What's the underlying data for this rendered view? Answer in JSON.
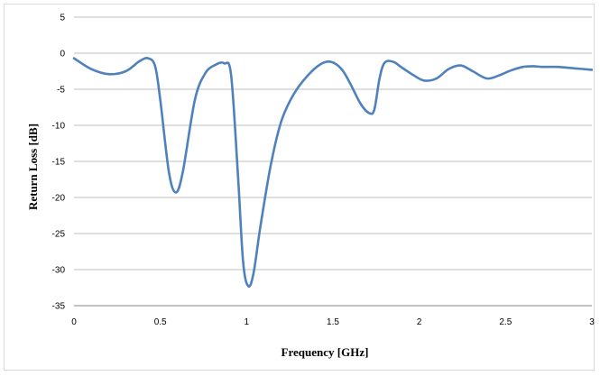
{
  "chart_data": {
    "type": "line",
    "title": "",
    "xlabel": "Frequency [GHz]",
    "ylabel": "Return Loss [dB]",
    "xlim": [
      0,
      3
    ],
    "ylim": [
      -35,
      5
    ],
    "xticks": [
      0,
      0.5,
      1,
      1.5,
      2,
      2.5,
      3
    ],
    "yticks": [
      5,
      0,
      -5,
      -10,
      -15,
      -20,
      -25,
      -30,
      -35
    ],
    "xtick_labels": [
      "0",
      "0.5",
      "1",
      "1.5",
      "2",
      "2.5",
      "3"
    ],
    "ytick_labels": [
      "5",
      "0",
      "-5",
      "-10",
      "-15",
      "-20",
      "-25",
      "-30",
      "-35"
    ],
    "grid": "horizontal",
    "legend": "none",
    "line_color": "#4f81bd",
    "series": [
      {
        "x": [
          0,
          0.1,
          0.2,
          0.3,
          0.38,
          0.43,
          0.47,
          0.5,
          0.55,
          0.59,
          0.63,
          0.7,
          0.76,
          0.82,
          0.87,
          0.91,
          0.95,
          0.98,
          1.01,
          1.04,
          1.08,
          1.14,
          1.2,
          1.27,
          1.35,
          1.43,
          1.49,
          1.55,
          1.6,
          1.66,
          1.71,
          1.74,
          1.77,
          1.8,
          1.85,
          1.9,
          1.97,
          2.03,
          2.1,
          2.17,
          2.24,
          2.31,
          2.39,
          2.46,
          2.53,
          2.6,
          2.66,
          2.71,
          2.8,
          2.9,
          3.0
        ],
        "y": [
          -0.7,
          -2.2,
          -2.9,
          -2.5,
          -1.1,
          -0.7,
          -1.8,
          -6.5,
          -16.5,
          -19.3,
          -16.5,
          -6.5,
          -2.8,
          -1.6,
          -1.4,
          -3.0,
          -17.0,
          -29.0,
          -32.3,
          -30.5,
          -24.0,
          -15.5,
          -9.5,
          -5.8,
          -3.2,
          -1.5,
          -1.2,
          -2.2,
          -4.2,
          -7.0,
          -8.3,
          -7.8,
          -3.5,
          -1.3,
          -1.2,
          -2.0,
          -3.1,
          -3.8,
          -3.5,
          -2.2,
          -1.7,
          -2.5,
          -3.5,
          -3.1,
          -2.4,
          -1.9,
          -1.8,
          -1.9,
          -1.9,
          -2.1,
          -2.3
        ]
      }
    ]
  }
}
